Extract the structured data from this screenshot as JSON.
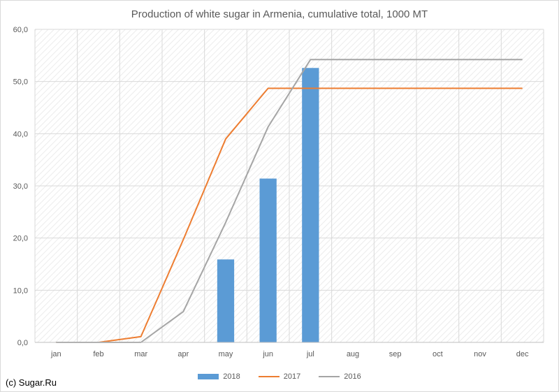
{
  "source": "(c) Sugar.Ru",
  "chart_data": {
    "type": "bar",
    "title": "Production of white sugar in Armenia, cumulative total, 1000 MT",
    "categories": [
      "jan",
      "feb",
      "mar",
      "apr",
      "may",
      "jun",
      "jul",
      "aug",
      "sep",
      "oct",
      "nov",
      "dec"
    ],
    "ylim": [
      0,
      60
    ],
    "yticks": [
      "0,0",
      "10,0",
      "20,0",
      "30,0",
      "40,0",
      "50,0",
      "60,0"
    ],
    "ytick_values": [
      0,
      10,
      20,
      30,
      40,
      50,
      60
    ],
    "grid": true,
    "legend_position": "bottom",
    "series": [
      {
        "name": "2018",
        "type": "bar",
        "color": "#5b9bd5",
        "values": [
          null,
          null,
          null,
          null,
          15.9,
          31.4,
          52.6,
          null,
          null,
          null,
          null,
          null
        ]
      },
      {
        "name": "2017",
        "type": "line",
        "color": "#ed7d31",
        "values": [
          0,
          0,
          1.1,
          19.7,
          39.0,
          48.7,
          48.7,
          48.7,
          48.7,
          48.7,
          48.7,
          48.7
        ]
      },
      {
        "name": "2016",
        "type": "line",
        "color": "#a5a5a5",
        "values": [
          0,
          0,
          0,
          5.9,
          23.0,
          41.3,
          54.2,
          54.2,
          54.2,
          54.2,
          54.2,
          54.2
        ]
      }
    ]
  }
}
